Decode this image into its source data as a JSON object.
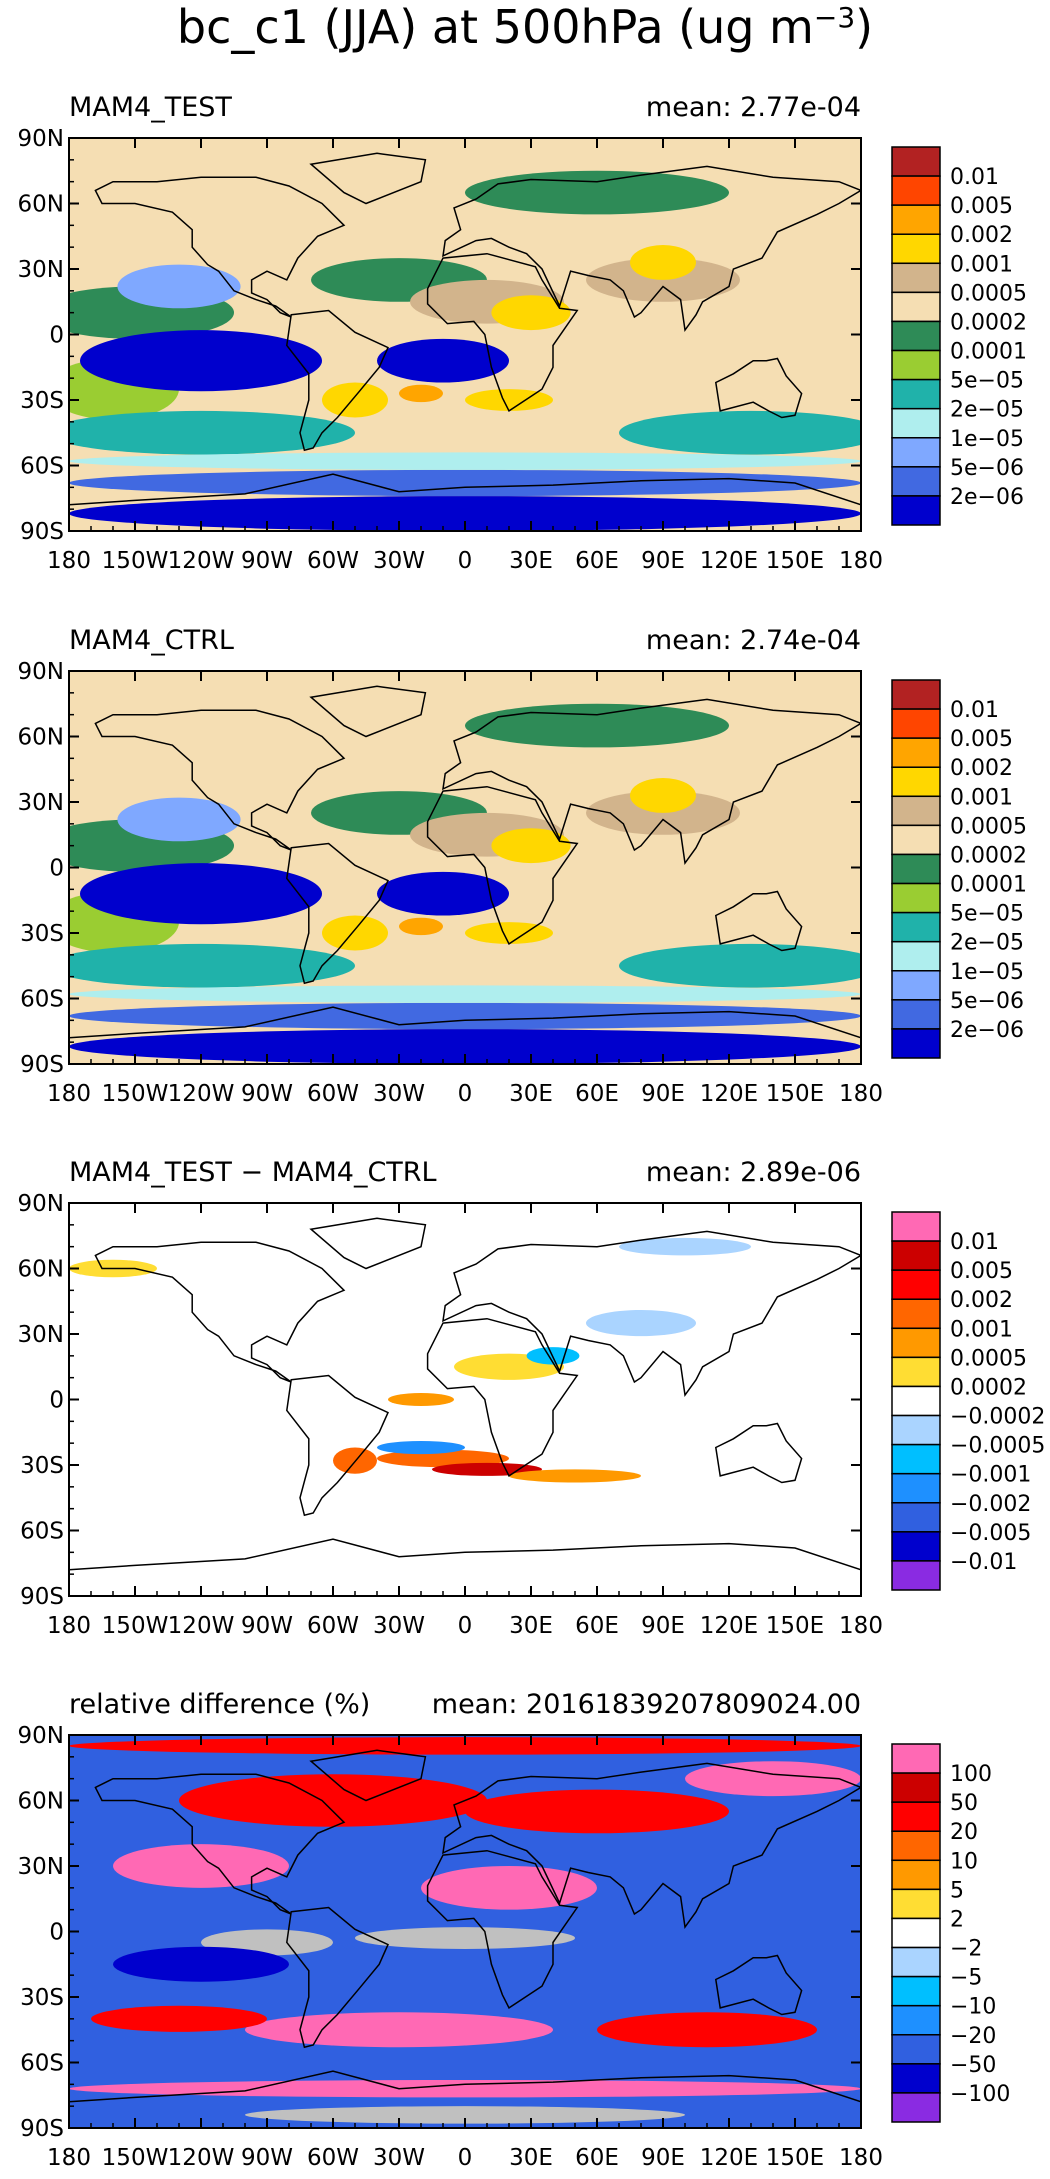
{
  "figure": {
    "title_main": "bc_c1 (JJA) at 500hPa (ug m",
    "title_exp": "−3",
    "title_close": ")"
  },
  "axes": {
    "lon_ticks": [
      "180",
      "150W",
      "120W",
      "90W",
      "60W",
      "30W",
      "0",
      "30E",
      "60E",
      "90E",
      "120E",
      "150E",
      "180"
    ],
    "lat_ticks": [
      "90N",
      "60N",
      "30N",
      "0",
      "30S",
      "60S",
      "90S"
    ]
  },
  "chart_data": [
    {
      "type": "heatmap",
      "title": "MAM4_TEST",
      "mean_label": "mean:",
      "mean_value": "2.77e-04",
      "xlim": [
        -180,
        180
      ],
      "ylim": [
        -90,
        90
      ],
      "colorbar": {
        "labels": [
          "0.01",
          "0.005",
          "0.002",
          "0.001",
          "0.0005",
          "0.0002",
          "0.0001",
          "5e−05",
          "2e−05",
          "1e−05",
          "5e−06",
          "2e−06"
        ],
        "colors": [
          "#b22222",
          "#ff4500",
          "#ffa500",
          "#ffd700",
          "#d2b48c",
          "#f5deb3",
          "#2e8b57",
          "#9acd32",
          "#20b2aa",
          "#afeeee",
          "#7fa8ff",
          "#4169e1",
          "#0000cd"
        ]
      },
      "field": {
        "base": "#f5deb3",
        "blobs": [
          {
            "lon": -150,
            "lat": 10,
            "rx": 45,
            "ry": 12,
            "color": "#2e8b57"
          },
          {
            "lon": -30,
            "lat": 25,
            "rx": 40,
            "ry": 10,
            "color": "#2e8b57"
          },
          {
            "lon": 60,
            "lat": 65,
            "rx": 60,
            "ry": 10,
            "color": "#2e8b57"
          },
          {
            "lon": -160,
            "lat": -25,
            "rx": 30,
            "ry": 14,
            "color": "#9acd32"
          },
          {
            "lon": -120,
            "lat": -45,
            "rx": 70,
            "ry": 10,
            "color": "#20b2aa"
          },
          {
            "lon": 130,
            "lat": -45,
            "rx": 60,
            "ry": 10,
            "color": "#20b2aa"
          },
          {
            "lon": -120,
            "lat": -12,
            "rx": 55,
            "ry": 14,
            "color": "#0000cd"
          },
          {
            "lon": -10,
            "lat": -12,
            "rx": 30,
            "ry": 10,
            "color": "#0000cd"
          },
          {
            "lon": -130,
            "lat": 22,
            "rx": 28,
            "ry": 10,
            "color": "#7fa8ff"
          },
          {
            "lon": 90,
            "lat": 25,
            "rx": 35,
            "ry": 10,
            "color": "#d2b48c"
          },
          {
            "lon": 10,
            "lat": 15,
            "rx": 35,
            "ry": 10,
            "color": "#d2b48c"
          },
          {
            "lon": 30,
            "lat": 10,
            "rx": 18,
            "ry": 8,
            "color": "#ffd700"
          },
          {
            "lon": 90,
            "lat": 33,
            "rx": 15,
            "ry": 8,
            "color": "#ffd700"
          },
          {
            "lon": -50,
            "lat": -30,
            "rx": 15,
            "ry": 8,
            "color": "#ffd700"
          },
          {
            "lon": 20,
            "lat": -30,
            "rx": 20,
            "ry": 5,
            "color": "#ffd700"
          },
          {
            "lon": -20,
            "lat": -27,
            "rx": 10,
            "ry": 4,
            "color": "#ffa500"
          },
          {
            "lon": 0,
            "lat": -68,
            "rx": 180,
            "ry": 6,
            "color": "#4169e1"
          },
          {
            "lon": 0,
            "lat": -58,
            "rx": 180,
            "ry": 4,
            "color": "#afeeee"
          },
          {
            "lon": 0,
            "lat": -82,
            "rx": 180,
            "ry": 8,
            "color": "#0000cd"
          }
        ]
      }
    },
    {
      "type": "heatmap",
      "title": "MAM4_CTRL",
      "mean_label": "mean:",
      "mean_value": "2.74e-04",
      "xlim": [
        -180,
        180
      ],
      "ylim": [
        -90,
        90
      ],
      "colorbar": {
        "labels": [
          "0.01",
          "0.005",
          "0.002",
          "0.001",
          "0.0005",
          "0.0002",
          "0.0001",
          "5e−05",
          "2e−05",
          "1e−05",
          "5e−06",
          "2e−06"
        ],
        "colors": [
          "#b22222",
          "#ff4500",
          "#ffa500",
          "#ffd700",
          "#d2b48c",
          "#f5deb3",
          "#2e8b57",
          "#9acd32",
          "#20b2aa",
          "#afeeee",
          "#7fa8ff",
          "#4169e1",
          "#0000cd"
        ]
      },
      "field": {
        "base": "#f5deb3",
        "blobs": [
          {
            "lon": -150,
            "lat": 10,
            "rx": 45,
            "ry": 12,
            "color": "#2e8b57"
          },
          {
            "lon": -30,
            "lat": 25,
            "rx": 40,
            "ry": 10,
            "color": "#2e8b57"
          },
          {
            "lon": 60,
            "lat": 65,
            "rx": 60,
            "ry": 10,
            "color": "#2e8b57"
          },
          {
            "lon": -160,
            "lat": -25,
            "rx": 30,
            "ry": 14,
            "color": "#9acd32"
          },
          {
            "lon": -120,
            "lat": -45,
            "rx": 70,
            "ry": 10,
            "color": "#20b2aa"
          },
          {
            "lon": 130,
            "lat": -45,
            "rx": 60,
            "ry": 10,
            "color": "#20b2aa"
          },
          {
            "lon": -120,
            "lat": -12,
            "rx": 55,
            "ry": 14,
            "color": "#0000cd"
          },
          {
            "lon": -10,
            "lat": -12,
            "rx": 30,
            "ry": 10,
            "color": "#0000cd"
          },
          {
            "lon": -130,
            "lat": 22,
            "rx": 28,
            "ry": 10,
            "color": "#7fa8ff"
          },
          {
            "lon": 90,
            "lat": 25,
            "rx": 35,
            "ry": 10,
            "color": "#d2b48c"
          },
          {
            "lon": 10,
            "lat": 15,
            "rx": 35,
            "ry": 10,
            "color": "#d2b48c"
          },
          {
            "lon": 30,
            "lat": 10,
            "rx": 18,
            "ry": 8,
            "color": "#ffd700"
          },
          {
            "lon": 90,
            "lat": 33,
            "rx": 15,
            "ry": 8,
            "color": "#ffd700"
          },
          {
            "lon": -50,
            "lat": -30,
            "rx": 15,
            "ry": 8,
            "color": "#ffd700"
          },
          {
            "lon": 20,
            "lat": -30,
            "rx": 20,
            "ry": 5,
            "color": "#ffd700"
          },
          {
            "lon": -20,
            "lat": -27,
            "rx": 10,
            "ry": 4,
            "color": "#ffa500"
          },
          {
            "lon": 0,
            "lat": -68,
            "rx": 180,
            "ry": 6,
            "color": "#4169e1"
          },
          {
            "lon": 0,
            "lat": -58,
            "rx": 180,
            "ry": 4,
            "color": "#afeeee"
          },
          {
            "lon": 0,
            "lat": -82,
            "rx": 180,
            "ry": 8,
            "color": "#0000cd"
          }
        ]
      }
    },
    {
      "type": "heatmap",
      "title": "MAM4_TEST − MAM4_CTRL",
      "mean_label": "mean:",
      "mean_value": "2.89e-06",
      "xlim": [
        -180,
        180
      ],
      "ylim": [
        -90,
        90
      ],
      "colorbar": {
        "labels": [
          "0.01",
          "0.005",
          "0.002",
          "0.001",
          "0.0005",
          "0.0002",
          "−0.0002",
          "−0.0005",
          "−0.001",
          "−0.002",
          "−0.005",
          "−0.01"
        ],
        "colors": [
          "#ff69b4",
          "#cc0000",
          "#ff0000",
          "#ff6600",
          "#ff9900",
          "#ffdd33",
          "#ffffff",
          "#aad4ff",
          "#00bfff",
          "#1e90ff",
          "#3060e0",
          "#0000cd",
          "#8a2be2"
        ]
      },
      "field": {
        "base": "#ffffff",
        "blobs": [
          {
            "lon": -10,
            "lat": -27,
            "rx": 30,
            "ry": 4,
            "color": "#ff6600"
          },
          {
            "lon": 10,
            "lat": -32,
            "rx": 25,
            "ry": 3,
            "color": "#cc0000"
          },
          {
            "lon": 50,
            "lat": -35,
            "rx": 30,
            "ry": 3,
            "color": "#ff9900"
          },
          {
            "lon": -20,
            "lat": -22,
            "rx": 20,
            "ry": 3,
            "color": "#1e90ff"
          },
          {
            "lon": -50,
            "lat": -28,
            "rx": 10,
            "ry": 6,
            "color": "#ff6600"
          },
          {
            "lon": 20,
            "lat": 15,
            "rx": 25,
            "ry": 6,
            "color": "#ffdd33"
          },
          {
            "lon": 40,
            "lat": 20,
            "rx": 12,
            "ry": 4,
            "color": "#00bfff"
          },
          {
            "lon": 80,
            "lat": 35,
            "rx": 25,
            "ry": 6,
            "color": "#aad4ff"
          },
          {
            "lon": -160,
            "lat": 60,
            "rx": 20,
            "ry": 4,
            "color": "#ffdd33"
          },
          {
            "lon": 100,
            "lat": 70,
            "rx": 30,
            "ry": 4,
            "color": "#aad4ff"
          },
          {
            "lon": -20,
            "lat": 0,
            "rx": 15,
            "ry": 3,
            "color": "#ff9900"
          }
        ]
      }
    },
    {
      "type": "heatmap",
      "title": "relative difference (%)",
      "mean_label": "mean:",
      "mean_value": "20161839207809024.00",
      "xlim": [
        -180,
        180
      ],
      "ylim": [
        -90,
        90
      ],
      "colorbar": {
        "labels": [
          "100",
          "50",
          "20",
          "10",
          "5",
          "2",
          "−2",
          "−5",
          "−10",
          "−20",
          "−50",
          "−100"
        ],
        "colors": [
          "#ff69b4",
          "#cc0000",
          "#ff0000",
          "#ff6600",
          "#ff9900",
          "#ffdd33",
          "#ffffff",
          "#aad4ff",
          "#00bfff",
          "#1e90ff",
          "#3060e0",
          "#0000cd",
          "#8a2be2"
        ]
      },
      "field": {
        "base": "#3060e0",
        "blobs": [
          {
            "lon": -60,
            "lat": 60,
            "rx": 70,
            "ry": 12,
            "color": "#ff0000"
          },
          {
            "lon": 60,
            "lat": 55,
            "rx": 60,
            "ry": 10,
            "color": "#ff0000"
          },
          {
            "lon": 140,
            "lat": 70,
            "rx": 40,
            "ry": 8,
            "color": "#ff69b4"
          },
          {
            "lon": -120,
            "lat": 30,
            "rx": 40,
            "ry": 10,
            "color": "#ff69b4"
          },
          {
            "lon": 20,
            "lat": 20,
            "rx": 40,
            "ry": 10,
            "color": "#ff69b4"
          },
          {
            "lon": -90,
            "lat": -5,
            "rx": 30,
            "ry": 6,
            "color": "#c0c0c0"
          },
          {
            "lon": 0,
            "lat": -3,
            "rx": 50,
            "ry": 5,
            "color": "#c0c0c0"
          },
          {
            "lon": -120,
            "lat": -15,
            "rx": 40,
            "ry": 8,
            "color": "#0000cd"
          },
          {
            "lon": -30,
            "lat": -45,
            "rx": 70,
            "ry": 8,
            "color": "#ff69b4"
          },
          {
            "lon": 110,
            "lat": -45,
            "rx": 50,
            "ry": 8,
            "color": "#ff0000"
          },
          {
            "lon": -130,
            "lat": -40,
            "rx": 40,
            "ry": 6,
            "color": "#ff0000"
          },
          {
            "lon": 0,
            "lat": -84,
            "rx": 100,
            "ry": 4,
            "color": "#c0c0c0"
          },
          {
            "lon": 0,
            "lat": -72,
            "rx": 180,
            "ry": 4,
            "color": "#ff69b4"
          },
          {
            "lon": 0,
            "lat": 85,
            "rx": 180,
            "ry": 4,
            "color": "#ff0000"
          }
        ]
      }
    }
  ]
}
